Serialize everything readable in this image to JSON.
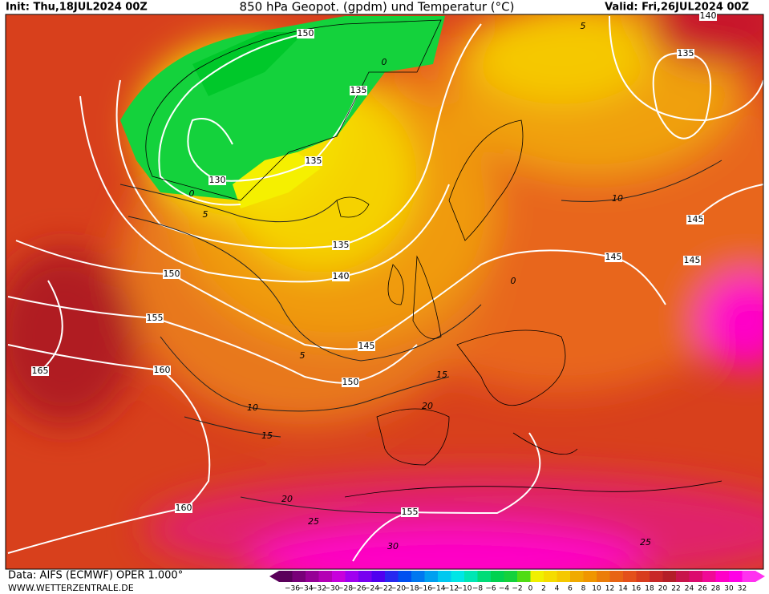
{
  "header": {
    "init": "Init: Thu,18JUL2024 00Z",
    "title": "850 hPa Geopot. (gpdm) und Temperatur (°C)",
    "valid": "Valid: Fri,26JUL2024 00Z"
  },
  "map": {
    "geopotential_labels": [
      "150",
      "135",
      "135",
      "130",
      "135",
      "140",
      "150",
      "155",
      "165",
      "160",
      "145",
      "150",
      "145",
      "145",
      "145",
      "160",
      "155",
      "135",
      "140"
    ],
    "isotherm_labels": [
      "0",
      "5",
      "0",
      "5",
      "10",
      "0",
      "5",
      "10",
      "15",
      "15",
      "20",
      "20",
      "25",
      "30",
      "25"
    ]
  },
  "footer": {
    "data": "Data: AIFS (ECMWF) OPER 1.000°",
    "site": "WWW.WETTERZENTRALE.DE"
  },
  "colorbar": {
    "ticks": [
      "−36",
      "−34",
      "−32",
      "−30",
      "−28",
      "−26",
      "−24",
      "−22",
      "−20",
      "−18",
      "−16",
      "−14",
      "−12",
      "−10",
      "−8",
      "−6",
      "−4",
      "−2",
      "0",
      "2",
      "4",
      "6",
      "8",
      "10",
      "12",
      "14",
      "16",
      "18",
      "20",
      "22",
      "24",
      "26",
      "28",
      "30",
      "32"
    ],
    "colors": [
      "#5a005a",
      "#780078",
      "#960096",
      "#b400b4",
      "#c800dc",
      "#a000f0",
      "#7800f0",
      "#5000f0",
      "#2828f0",
      "#0050f0",
      "#0078f0",
      "#00a0f0",
      "#00c8f0",
      "#00e6e6",
      "#00e6b4",
      "#00dc78",
      "#00d250",
      "#14d23c",
      "#50dc14",
      "#f0f000",
      "#f5dc00",
      "#f5c800",
      "#f0aa00",
      "#f09600",
      "#eb7d0a",
      "#e86414",
      "#e4501a",
      "#d83c1e",
      "#c82828",
      "#b41e28",
      "#c8144b",
      "#dc0a6e",
      "#f00a96",
      "#ff00c8",
      "#ff00e6",
      "#ff32f0"
    ]
  }
}
